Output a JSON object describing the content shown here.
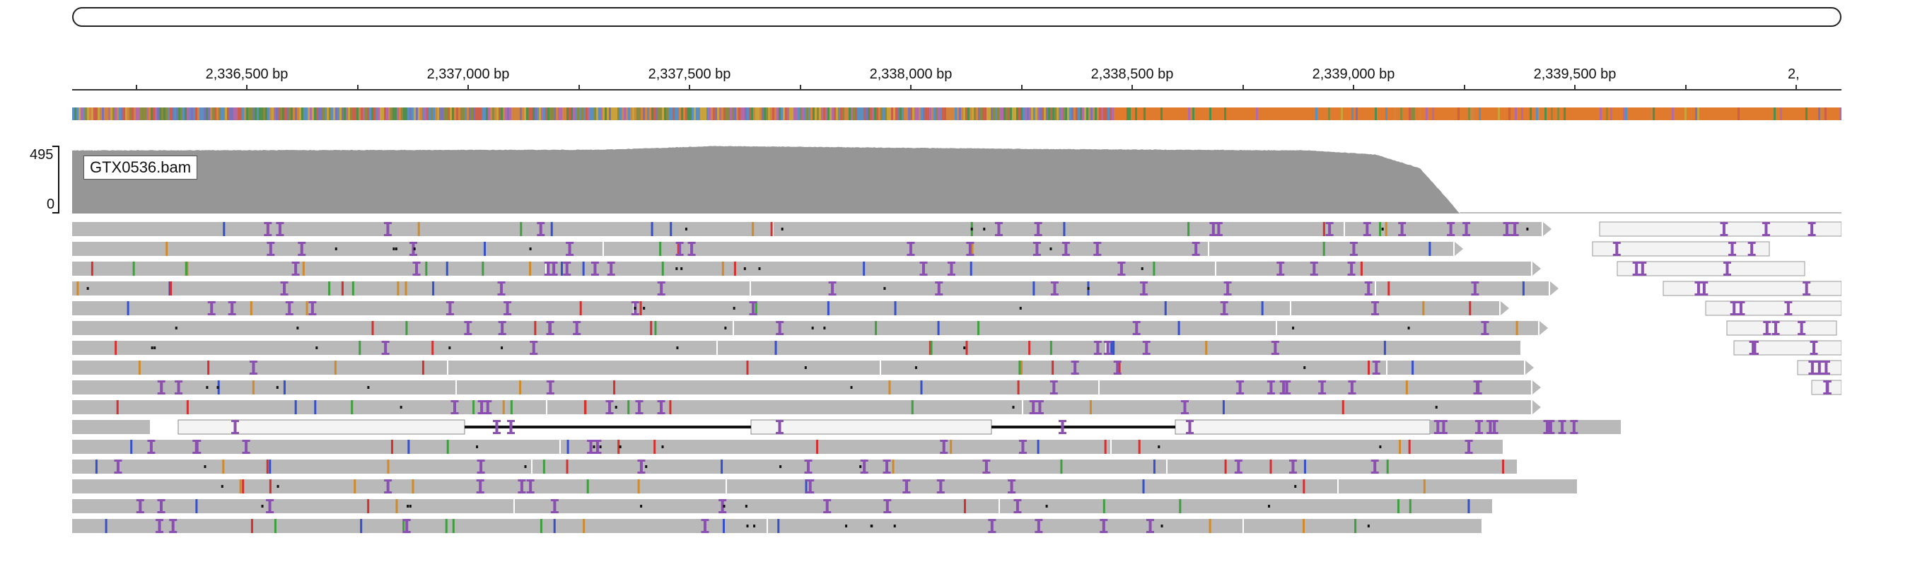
{
  "locus_box": {
    "value": ""
  },
  "ruler": {
    "ticks": [
      {
        "label": "2,336,500 bp",
        "bp": 2336500
      },
      {
        "label": "2,337,000 bp",
        "bp": 2337000
      },
      {
        "label": "2,337,500 bp",
        "bp": 2337500
      },
      {
        "label": "2,338,000 bp",
        "bp": 2338000
      },
      {
        "label": "2,338,500 bp",
        "bp": 2338500
      },
      {
        "label": "2,339,000 bp",
        "bp": 2339000
      },
      {
        "label": "2,339,500 bp",
        "bp": 2339500
      },
      {
        "label": "2,",
        "bp": 2340000
      }
    ],
    "view_start_bp": 2336000,
    "view_end_bp": 2340000
  },
  "coverage": {
    "track_label": "GTX0536.bam",
    "scale_max": "495",
    "scale_min": "0",
    "color": "#969696",
    "profile_bp": [
      2336000,
      2336100,
      2337300,
      2337450,
      2337550,
      2338300,
      2338900,
      2339050,
      2339150,
      2339200,
      2339240
    ],
    "profile_depth": [
      440,
      460,
      465,
      480,
      492,
      470,
      460,
      430,
      330,
      150,
      0
    ]
  },
  "colors": {
    "read_fill": "#b9b9b9",
    "read_outline": "#f2f2f2",
    "insertion": "#8a4fb0",
    "mismatch_a": "#3f9f3f",
    "mismatch_c": "#3550c8",
    "mismatch_g": "#d08a2a",
    "mismatch_t": "#d43030",
    "splice_line": "#111111",
    "sequence_palette": [
      "#d2843e",
      "#cc5f4a",
      "#4e8f4b",
      "#7b73b8",
      "#5b8fbf",
      "#b26aa8",
      "#8a8a3e",
      "#c9a33a"
    ],
    "sequence_orange": "#e07a2c"
  },
  "alignment": {
    "rows": 16
  }
}
